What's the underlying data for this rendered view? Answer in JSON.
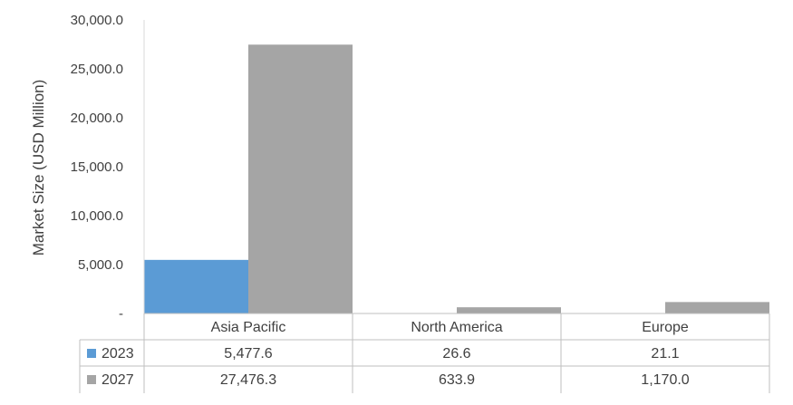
{
  "chart_data": {
    "type": "bar",
    "title": "",
    "ylabel": "Market Size (USD Million)",
    "xlabel": "",
    "ylim": [
      0,
      30000
    ],
    "yticks": [
      0,
      5000,
      10000,
      15000,
      20000,
      25000,
      30000
    ],
    "ytick_labels": [
      "-",
      "5,000.0",
      "10,000.0",
      "15,000.0",
      "20,000.0",
      "25,000.0",
      "30,000.0"
    ],
    "categories": [
      "Asia Pacific",
      "North America",
      "Europe"
    ],
    "series": [
      {
        "name": "2023",
        "color": "#5B9BD5",
        "values": [
          5477.6,
          26.6,
          21.1
        ],
        "labels": [
          "5,477.6",
          "26.6",
          "21.1"
        ]
      },
      {
        "name": "2027",
        "color": "#A5A5A5",
        "values": [
          27476.3,
          633.9,
          1170.0
        ],
        "labels": [
          "27,476.3",
          "633.9",
          "1,170.0"
        ]
      }
    ],
    "grid": false,
    "legend": "data-table"
  }
}
